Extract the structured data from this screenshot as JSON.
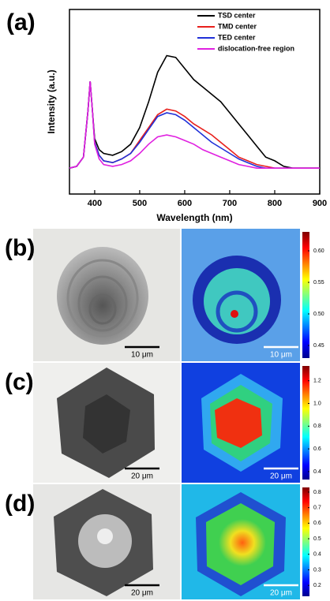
{
  "chart_data": {
    "type": "line",
    "title": "(a)",
    "xlabel": "Wavelength (nm)",
    "ylabel": "Intensity (a.u.)",
    "x": [
      344,
      360,
      375,
      385,
      390,
      395,
      400,
      410,
      420,
      440,
      460,
      480,
      500,
      520,
      540,
      560,
      580,
      600,
      620,
      640,
      660,
      680,
      700,
      720,
      740,
      760,
      780,
      800,
      820,
      840,
      860,
      880,
      900
    ],
    "xlim": [
      344,
      900
    ],
    "xticks": [
      400,
      500,
      600,
      700,
      800,
      900
    ],
    "ylim": [
      0,
      1
    ],
    "legend": "upper right",
    "series": [
      {
        "name": "TSD center",
        "color": "#000000",
        "values": [
          0.14,
          0.15,
          0.2,
          0.45,
          0.61,
          0.45,
          0.3,
          0.24,
          0.22,
          0.21,
          0.23,
          0.27,
          0.36,
          0.5,
          0.66,
          0.75,
          0.74,
          0.68,
          0.62,
          0.58,
          0.54,
          0.5,
          0.44,
          0.38,
          0.32,
          0.26,
          0.2,
          0.18,
          0.15,
          0.14,
          0.14,
          0.14,
          0.14
        ]
      },
      {
        "name": "TMD center",
        "color": "#e8201c",
        "values": [
          0.14,
          0.15,
          0.2,
          0.45,
          0.61,
          0.45,
          0.28,
          0.21,
          0.18,
          0.17,
          0.19,
          0.22,
          0.29,
          0.36,
          0.43,
          0.46,
          0.45,
          0.42,
          0.38,
          0.35,
          0.32,
          0.28,
          0.24,
          0.2,
          0.18,
          0.16,
          0.15,
          0.14,
          0.14,
          0.14,
          0.14,
          0.14,
          0.14
        ]
      },
      {
        "name": "TED center",
        "color": "#2030d8",
        "values": [
          0.14,
          0.15,
          0.2,
          0.45,
          0.61,
          0.45,
          0.28,
          0.21,
          0.18,
          0.17,
          0.19,
          0.22,
          0.28,
          0.35,
          0.42,
          0.44,
          0.43,
          0.4,
          0.36,
          0.32,
          0.28,
          0.25,
          0.22,
          0.19,
          0.17,
          0.15,
          0.14,
          0.14,
          0.14,
          0.14,
          0.14,
          0.14,
          0.14
        ]
      },
      {
        "name": "dislocation-free region",
        "color": "#e020e0",
        "values": [
          0.14,
          0.15,
          0.2,
          0.45,
          0.61,
          0.45,
          0.27,
          0.19,
          0.16,
          0.15,
          0.16,
          0.18,
          0.22,
          0.27,
          0.31,
          0.32,
          0.31,
          0.29,
          0.27,
          0.24,
          0.22,
          0.2,
          0.18,
          0.16,
          0.15,
          0.14,
          0.14,
          0.14,
          0.14,
          0.14,
          0.14,
          0.14,
          0.14
        ]
      }
    ]
  },
  "panels": [
    {
      "label": "(b)",
      "scale_bars": [
        "10 μm",
        "10 μm"
      ],
      "clim": [
        0.43,
        0.63
      ],
      "ticks": [
        0.45,
        {
          "value": 0.5,
          "label": "0.50"
        },
        0.55,
        {
          "value": 0.6,
          "label": "0.60"
        }
      ]
    },
    {
      "label": "(c)",
      "scale_bars": [
        "20 μm",
        "20 μm"
      ],
      "clim": [
        0.33,
        1.33
      ],
      "ticks": [
        0.4,
        0.6,
        0.8,
        {
          "value": 1.0,
          "label": "1.0"
        },
        1.2
      ]
    },
    {
      "label": "(d)",
      "scale_bars": [
        "20 μm",
        "20 μm"
      ],
      "clim": [
        0.13,
        0.83
      ],
      "ticks": [
        0.2,
        0.3,
        0.4,
        0.5,
        0.6,
        0.7,
        0.8
      ]
    }
  ]
}
